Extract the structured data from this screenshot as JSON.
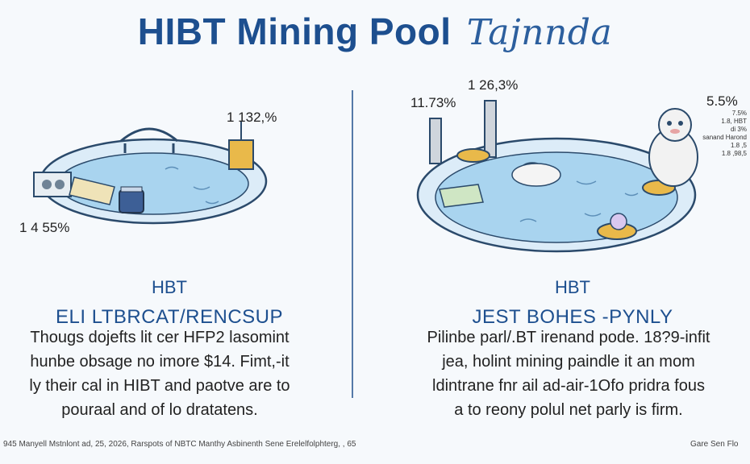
{
  "title": {
    "main": "HIBT Mining Pool",
    "script": "Tajnnda"
  },
  "left": {
    "pct_top": "1 132,%",
    "pct_bottom": "1 4 55%",
    "heading": "HBT",
    "subheading": "ELI LTBRCAT/RENCSUP",
    "paragraph": [
      "Thougs dojefts lit cer HFP2 lasomint",
      "hunbe obsage no imore $14. Fimt,-it",
      "ly their cal in HIBT and paotve are to",
      "pouraal and of lo dratatens."
    ]
  },
  "right": {
    "pct_a": "11.73%",
    "pct_b": "1 26,3%",
    "pct_c": "5.5%",
    "mini_text": [
      "7.5%",
      "1.8, HBT",
      "di 3%",
      "sanand Harond",
      "1.8 ,5",
      "1.8 ,98,5"
    ],
    "heading": "HBT",
    "subheading": "JEST BOHES -PYNLY",
    "paragraph": [
      "Pilinbe parl/.BT irenand pode. 18?9-infit",
      "jea, holint mining paindle it an mom",
      "ldintrane fnr ail ad-air-1Ofo pridra fous",
      "a to reony polul net parly is firm."
    ]
  },
  "footer": {
    "left": "945 Manyell Mstnlont ad, 25, 2026, Rarspots of NBTC Manthy Asbinenth Sene Erelelfolphterg, , 65",
    "right": "Gare Sen Flo"
  },
  "colors": {
    "title": "#1d4f8f",
    "water": "#a9d4ef",
    "rim": "#dcecf8",
    "gold": "#e9b94a"
  }
}
